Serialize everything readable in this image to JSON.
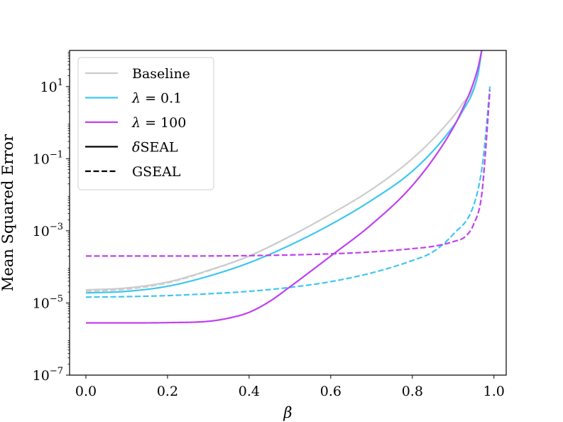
{
  "chart_data": {
    "type": "line",
    "title": "",
    "xlabel": "β",
    "ylabel": "Mean Squared Error",
    "xlim": [
      -0.04,
      1.03
    ],
    "ylim": [
      1e-07,
      100
    ],
    "yscale": "log",
    "xticks": [
      0.0,
      0.2,
      0.4,
      0.6,
      0.8,
      1.0
    ],
    "xtick_labels": [
      "0.0",
      "0.2",
      "0.4",
      "0.6",
      "0.8",
      "1.0"
    ],
    "yticks": [
      {
        "value": 1e-07,
        "base": "10",
        "exp": "−7"
      },
      {
        "value": 1e-05,
        "base": "10",
        "exp": "−5"
      },
      {
        "value": 0.001,
        "base": "10",
        "exp": "−3"
      },
      {
        "value": 0.1,
        "base": "10",
        "exp": "−1"
      },
      {
        "value": 10,
        "base": "10",
        "exp": "1"
      }
    ],
    "grid": false,
    "legend_position": "top-left",
    "legend": [
      {
        "label": "Baseline",
        "color": "#cccccc",
        "style": "solid"
      },
      {
        "label_symbol": "λ",
        "label_rest": " = 0.1",
        "color": "#3ec7f0",
        "style": "solid"
      },
      {
        "label_symbol": "λ",
        "label_rest": " = 100",
        "color": "#c040f0",
        "style": "solid"
      },
      {
        "label_symbol": "δ",
        "label_rest": "SEAL",
        "color": "#000000",
        "style": "solid"
      },
      {
        "label": "GSEAL",
        "color": "#000000",
        "style": "dashed"
      }
    ],
    "series": [
      {
        "key": "baseline-seal",
        "color": "#cccccc",
        "style": "solid",
        "points": [
          [
            0.0,
            2.3e-05
          ],
          [
            0.1,
            2.6e-05
          ],
          [
            0.2,
            3.8e-05
          ],
          [
            0.3,
            8e-05
          ],
          [
            0.4,
            0.0002
          ],
          [
            0.5,
            0.0007
          ],
          [
            0.6,
            0.0029
          ],
          [
            0.7,
            0.014
          ],
          [
            0.8,
            0.1
          ],
          [
            0.88,
            0.8
          ],
          [
            0.92,
            3
          ],
          [
            0.96,
            20
          ],
          [
            0.97,
            100
          ]
        ]
      },
      {
        "key": "baseline-gseal",
        "color": "#cccccc",
        "style": "dashed",
        "points": [
          [
            0.0,
            2.1e-05
          ],
          [
            0.1,
            2.4e-05
          ],
          [
            0.2,
            3.6e-05
          ],
          [
            0.3,
            7.8e-05
          ],
          [
            0.4,
            0.0002
          ],
          [
            0.5,
            0.0007
          ]
        ]
      },
      {
        "key": "lambda01-seal",
        "color": "#3ec7f0",
        "style": "solid",
        "points": [
          [
            0.0,
            1.9e-05
          ],
          [
            0.1,
            2.1e-05
          ],
          [
            0.2,
            2.9e-05
          ],
          [
            0.3,
            5.5e-05
          ],
          [
            0.4,
            0.00013
          ],
          [
            0.5,
            0.0004
          ],
          [
            0.6,
            0.0015
          ],
          [
            0.7,
            0.007
          ],
          [
            0.8,
            0.045
          ],
          [
            0.88,
            0.4
          ],
          [
            0.92,
            1.8
          ],
          [
            0.96,
            20
          ],
          [
            0.97,
            100
          ]
        ]
      },
      {
        "key": "lambda01-gseal",
        "color": "#3ec7f0",
        "style": "dashed",
        "points": [
          [
            0.0,
            1.45e-05
          ],
          [
            0.1,
            1.5e-05
          ],
          [
            0.2,
            1.6e-05
          ],
          [
            0.3,
            1.8e-05
          ],
          [
            0.4,
            2.1e-05
          ],
          [
            0.5,
            2.7e-05
          ],
          [
            0.6,
            3.9e-05
          ],
          [
            0.7,
            6.8e-05
          ],
          [
            0.8,
            0.00015
          ],
          [
            0.85,
            0.00026
          ],
          [
            0.9,
            0.0008
          ],
          [
            0.95,
            0.005
          ],
          [
            0.97,
            0.05
          ],
          [
            0.98,
            0.5
          ],
          [
            0.99,
            10
          ]
        ]
      },
      {
        "key": "lambda100-seal",
        "color": "#c040f0",
        "style": "solid",
        "points": [
          [
            0.0,
            2.8e-06
          ],
          [
            0.1,
            2.8e-06
          ],
          [
            0.2,
            2.85e-06
          ],
          [
            0.3,
            3.1e-06
          ],
          [
            0.35,
            3.8e-06
          ],
          [
            0.4,
            5.5e-06
          ],
          [
            0.45,
            1.1e-05
          ],
          [
            0.5,
            2.8e-05
          ],
          [
            0.6,
            0.0002
          ],
          [
            0.7,
            0.0015
          ],
          [
            0.8,
            0.018
          ],
          [
            0.88,
            0.3
          ],
          [
            0.92,
            2
          ],
          [
            0.96,
            30
          ],
          [
            0.97,
            100
          ]
        ]
      },
      {
        "key": "lambda100-gseal",
        "color": "#c040f0",
        "style": "dashed",
        "points": [
          [
            0.0,
            0.0002
          ],
          [
            0.2,
            0.0002
          ],
          [
            0.4,
            0.000205
          ],
          [
            0.6,
            0.00023
          ],
          [
            0.7,
            0.00026
          ],
          [
            0.8,
            0.00032
          ],
          [
            0.85,
            0.00037
          ],
          [
            0.9,
            0.0005
          ],
          [
            0.93,
            0.0007
          ],
          [
            0.95,
            0.0015
          ],
          [
            0.97,
            0.01
          ],
          [
            0.98,
            0.2
          ],
          [
            0.99,
            8
          ]
        ]
      }
    ]
  }
}
